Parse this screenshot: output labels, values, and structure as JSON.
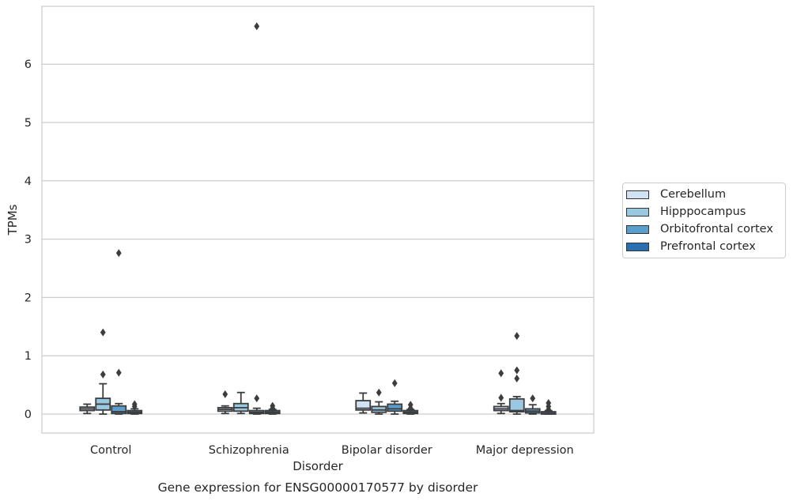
{
  "chart_data": {
    "type": "box",
    "title": "Gene expression for ENSG00000170577 by disorder",
    "xlabel": "Disorder",
    "ylabel": "TPMs",
    "ylim": [
      -0.32,
      7.0
    ],
    "yticks": [
      0,
      1,
      2,
      3,
      4,
      5,
      6
    ],
    "grid": "horizontal",
    "legend_position": "outside-right",
    "categories": [
      "Control",
      "Schizophrenia",
      "Bipolar disorder",
      "Major depression"
    ],
    "series": [
      {
        "name": "Cerebellum",
        "color": "#d1e2f2",
        "boxes": [
          {
            "whislo": 0.01,
            "q1": 0.06,
            "med": 0.09,
            "q3": 0.12,
            "whishi": 0.17,
            "fliers": []
          },
          {
            "whislo": 0.01,
            "q1": 0.05,
            "med": 0.08,
            "q3": 0.11,
            "whishi": 0.14,
            "fliers": [
              0.34
            ]
          },
          {
            "whislo": 0.02,
            "q1": 0.07,
            "med": 0.1,
            "q3": 0.23,
            "whishi": 0.36,
            "fliers": []
          },
          {
            "whislo": 0.01,
            "q1": 0.06,
            "med": 0.09,
            "q3": 0.13,
            "whishi": 0.18,
            "fliers": [
              0.28,
              0.7
            ]
          }
        ]
      },
      {
        "name": "Hipppocampus",
        "color": "#9ac8e0",
        "boxes": [
          {
            "whislo": 0.0,
            "q1": 0.07,
            "med": 0.17,
            "q3": 0.27,
            "whishi": 0.52,
            "fliers": [
              0.68,
              1.4
            ]
          },
          {
            "whislo": 0.01,
            "q1": 0.05,
            "med": 0.11,
            "q3": 0.18,
            "whishi": 0.37,
            "fliers": []
          },
          {
            "whislo": 0.0,
            "q1": 0.03,
            "med": 0.07,
            "q3": 0.13,
            "whishi": 0.21,
            "fliers": [
              0.37
            ]
          },
          {
            "whislo": 0.0,
            "q1": 0.04,
            "med": 0.06,
            "q3": 0.26,
            "whishi": 0.3,
            "fliers": [
              0.61,
              0.75,
              1.34
            ]
          }
        ]
      },
      {
        "name": "Orbitofrontal cortex",
        "color": "#5a9ecc",
        "boxes": [
          {
            "whislo": 0.0,
            "q1": 0.01,
            "med": 0.04,
            "q3": 0.14,
            "whishi": 0.18,
            "fliers": [
              0.71,
              2.76
            ]
          },
          {
            "whislo": 0.0,
            "q1": 0.01,
            "med": 0.03,
            "q3": 0.06,
            "whishi": 0.1,
            "fliers": [
              6.65,
              0.27
            ]
          },
          {
            "whislo": 0.0,
            "q1": 0.05,
            "med": 0.09,
            "q3": 0.17,
            "whishi": 0.22,
            "fliers": [
              0.53
            ]
          },
          {
            "whislo": 0.0,
            "q1": 0.02,
            "med": 0.05,
            "q3": 0.09,
            "whishi": 0.16,
            "fliers": [
              0.27
            ]
          }
        ]
      },
      {
        "name": "Prefrontal cortex",
        "color": "#2a6fb0",
        "boxes": [
          {
            "whislo": 0.0,
            "q1": 0.01,
            "med": 0.03,
            "q3": 0.06,
            "whishi": 0.09,
            "fliers": [
              0.13,
              0.17
            ]
          },
          {
            "whislo": 0.0,
            "q1": 0.01,
            "med": 0.03,
            "q3": 0.06,
            "whishi": 0.08,
            "fliers": [
              0.1,
              0.14
            ]
          },
          {
            "whislo": 0.0,
            "q1": 0.01,
            "med": 0.03,
            "q3": 0.06,
            "whishi": 0.08,
            "fliers": [
              0.1,
              0.16
            ]
          },
          {
            "whislo": 0.0,
            "q1": 0.0,
            "med": 0.01,
            "q3": 0.04,
            "whishi": 0.06,
            "fliers": [
              0.08,
              0.13,
              0.19
            ]
          }
        ]
      }
    ]
  }
}
